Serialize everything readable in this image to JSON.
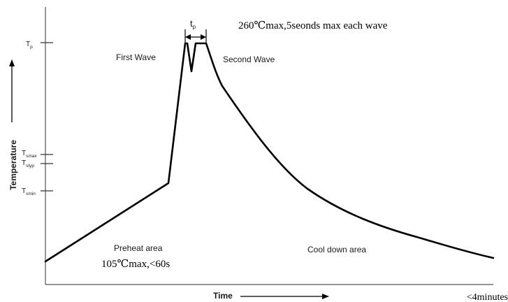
{
  "diagram": {
    "type": "wave-soldering-temperature-profile",
    "axes": {
      "y_label": "Temperature",
      "x_label": "Time"
    },
    "y_ticks": [
      {
        "main": "T",
        "sub": "p"
      },
      {
        "main": "T",
        "sub": "smax"
      },
      {
        "main": "T",
        "sub": "styp"
      },
      {
        "main": "T",
        "sub": "smin"
      }
    ],
    "peak_width_label": {
      "main": "t",
      "sub": "p"
    },
    "annotations": {
      "first_wave": "First Wave",
      "second_wave": "Second Wave",
      "peak_limit": "260℃max,5seonds max each wave",
      "preheat_area": "Preheat area",
      "preheat_limit": "105℃max,<60s",
      "cool_down_area": "Cool down area",
      "total_time": "<4minutes"
    },
    "colors": {
      "curve": "#000000",
      "axis": "#555555",
      "label": "#1a1a1a"
    }
  }
}
